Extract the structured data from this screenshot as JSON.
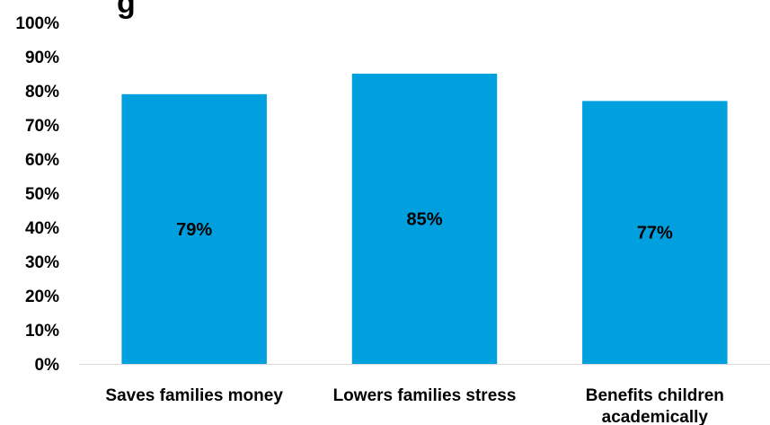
{
  "chart_data": {
    "type": "bar",
    "title": "",
    "xlabel": "",
    "ylabel": "",
    "categories": [
      [
        "Saves families money"
      ],
      [
        "Lowers families stress"
      ],
      [
        "Benefits children",
        "academically"
      ]
    ],
    "series": [
      {
        "values": [
          79,
          85,
          77
        ],
        "color": "#00A0DF"
      }
    ],
    "data_labels": [
      "79%",
      "85%",
      "77%"
    ],
    "ylim": [
      0,
      100
    ],
    "y_ticks": [
      0,
      10,
      20,
      30,
      40,
      50,
      60,
      70,
      80,
      90,
      100
    ],
    "y_tick_labels": [
      "0%",
      "10%",
      "20%",
      "30%",
      "40%",
      "50%",
      "60%",
      "70%",
      "80%",
      "90%",
      "100%"
    ],
    "grid": false,
    "legend": "none"
  }
}
